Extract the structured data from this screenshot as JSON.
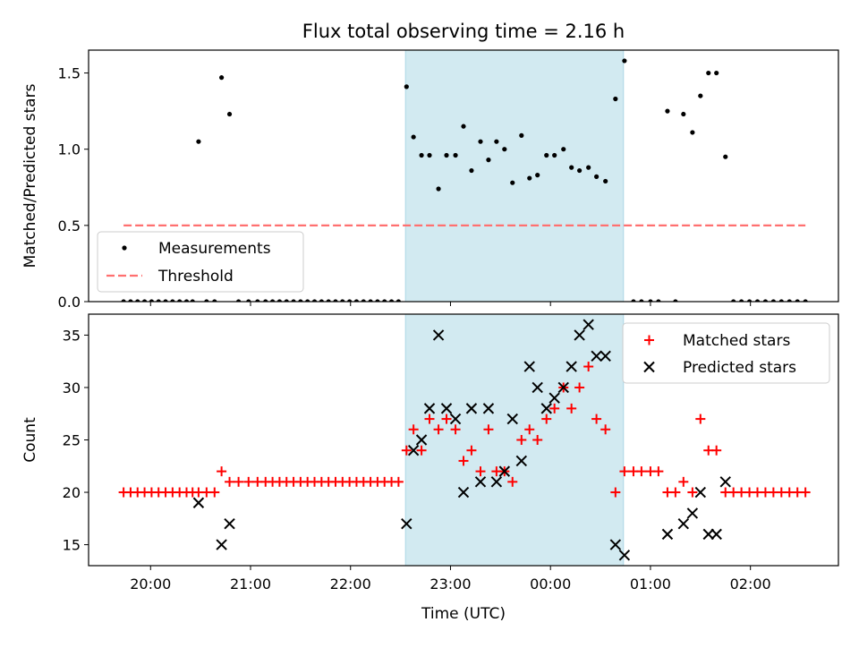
{
  "title": "Flux total observing time = 2.16 h",
  "colors": {
    "measurement": "#000000",
    "threshold": "#ff7070",
    "matched": "#ff0000",
    "predicted": "#000000",
    "span": "#add8e6"
  },
  "chart_data": [
    {
      "type": "scatter",
      "panel": "top",
      "ylabel": "Matched/Predicted stars",
      "xlabel": "",
      "x_unit": "hours since 20:00 UTC",
      "xlim": [
        -0.62,
        6.88
      ],
      "ylim": [
        0,
        1.65
      ],
      "yticks": [
        0.0,
        0.5,
        1.0,
        1.5
      ],
      "ytick_labels": [
        "0.0",
        "0.5",
        "1.0",
        "1.5"
      ],
      "grid": false,
      "legend": {
        "position": "lower left",
        "entries": [
          "Measurements",
          "Threshold"
        ]
      },
      "shaded_span": {
        "x0": 2.55,
        "x1": 4.73
      },
      "series": [
        {
          "name": "Measurements",
          "marker": "dot",
          "points": [
            [
              -0.27,
              0
            ],
            [
              -0.2,
              0
            ],
            [
              -0.13,
              0
            ],
            [
              -0.06,
              0
            ],
            [
              0.01,
              0
            ],
            [
              0.08,
              0
            ],
            [
              0.15,
              0
            ],
            [
              0.22,
              0
            ],
            [
              0.29,
              0
            ],
            [
              0.36,
              0
            ],
            [
              0.42,
              0
            ],
            [
              0.48,
              1.05
            ],
            [
              0.56,
              0
            ],
            [
              0.64,
              0
            ],
            [
              0.71,
              1.47
            ],
            [
              0.79,
              1.23
            ],
            [
              0.88,
              0
            ],
            [
              0.98,
              0
            ],
            [
              1.07,
              0
            ],
            [
              1.15,
              0
            ],
            [
              1.22,
              0
            ],
            [
              1.29,
              0
            ],
            [
              1.36,
              0
            ],
            [
              1.43,
              0
            ],
            [
              1.5,
              0
            ],
            [
              1.57,
              0
            ],
            [
              1.64,
              0
            ],
            [
              1.71,
              0
            ],
            [
              1.78,
              0
            ],
            [
              1.85,
              0
            ],
            [
              1.92,
              0
            ],
            [
              1.99,
              0
            ],
            [
              2.06,
              0
            ],
            [
              2.13,
              0
            ],
            [
              2.2,
              0
            ],
            [
              2.27,
              0
            ],
            [
              2.34,
              0
            ],
            [
              2.41,
              0
            ],
            [
              2.48,
              0
            ],
            [
              2.56,
              1.41
            ],
            [
              2.63,
              1.08
            ],
            [
              2.71,
              0.96
            ],
            [
              2.79,
              0.96
            ],
            [
              2.88,
              0.74
            ],
            [
              2.96,
              0.96
            ],
            [
              3.05,
              0.96
            ],
            [
              3.13,
              1.15
            ],
            [
              3.21,
              0.86
            ],
            [
              3.3,
              1.05
            ],
            [
              3.38,
              0.93
            ],
            [
              3.46,
              1.05
            ],
            [
              3.54,
              1.0
            ],
            [
              3.62,
              0.78
            ],
            [
              3.71,
              1.09
            ],
            [
              3.79,
              0.81
            ],
            [
              3.87,
              0.83
            ],
            [
              3.96,
              0.96
            ],
            [
              4.04,
              0.96
            ],
            [
              4.13,
              1.0
            ],
            [
              4.21,
              0.88
            ],
            [
              4.29,
              0.86
            ],
            [
              4.38,
              0.88
            ],
            [
              4.46,
              0.82
            ],
            [
              4.55,
              0.79
            ],
            [
              4.65,
              1.33
            ],
            [
              4.74,
              1.58
            ],
            [
              4.83,
              0
            ],
            [
              4.91,
              0
            ],
            [
              5.0,
              0
            ],
            [
              5.08,
              0
            ],
            [
              5.17,
              1.25
            ],
            [
              5.25,
              0
            ],
            [
              5.33,
              1.23
            ],
            [
              5.42,
              1.11
            ],
            [
              5.5,
              1.35
            ],
            [
              5.58,
              1.5
            ],
            [
              5.66,
              1.5
            ],
            [
              5.75,
              0.95
            ],
            [
              5.83,
              0
            ],
            [
              5.91,
              0
            ],
            [
              5.99,
              0
            ],
            [
              6.07,
              0
            ],
            [
              6.15,
              0
            ],
            [
              6.23,
              0
            ],
            [
              6.31,
              0
            ],
            [
              6.39,
              0
            ],
            [
              6.47,
              0
            ],
            [
              6.55,
              0
            ]
          ]
        },
        {
          "name": "Threshold",
          "style": "dashed",
          "points": [
            [
              -0.27,
              0.5
            ],
            [
              6.55,
              0.5
            ]
          ]
        }
      ]
    },
    {
      "type": "scatter",
      "panel": "bottom",
      "ylabel": "Count",
      "xlabel": "Time (UTC)",
      "x_unit": "hours since 20:00 UTC",
      "xlim": [
        -0.62,
        6.88
      ],
      "ylim": [
        13,
        37
      ],
      "xticks": [
        0,
        1,
        2,
        3,
        4,
        5,
        6
      ],
      "xtick_labels": [
        "20:00",
        "21:00",
        "22:00",
        "23:00",
        "00:00",
        "01:00",
        "02:00"
      ],
      "yticks": [
        15,
        20,
        25,
        30,
        35
      ],
      "ytick_labels": [
        "15",
        "20",
        "25",
        "30",
        "35"
      ],
      "grid": false,
      "legend": {
        "position": "upper right",
        "entries": [
          "Matched stars",
          "Predicted stars"
        ]
      },
      "shaded_span": {
        "x0": 2.55,
        "x1": 4.73
      },
      "series": [
        {
          "name": "Matched stars",
          "marker": "plus",
          "points": [
            [
              -0.27,
              20
            ],
            [
              -0.2,
              20
            ],
            [
              -0.13,
              20
            ],
            [
              -0.06,
              20
            ],
            [
              0.01,
              20
            ],
            [
              0.08,
              20
            ],
            [
              0.15,
              20
            ],
            [
              0.22,
              20
            ],
            [
              0.29,
              20
            ],
            [
              0.36,
              20
            ],
            [
              0.42,
              20
            ],
            [
              0.48,
              20
            ],
            [
              0.56,
              20
            ],
            [
              0.64,
              20
            ],
            [
              0.71,
              22
            ],
            [
              0.79,
              21
            ],
            [
              0.88,
              21
            ],
            [
              0.98,
              21
            ],
            [
              1.07,
              21
            ],
            [
              1.15,
              21
            ],
            [
              1.22,
              21
            ],
            [
              1.29,
              21
            ],
            [
              1.36,
              21
            ],
            [
              1.43,
              21
            ],
            [
              1.5,
              21
            ],
            [
              1.57,
              21
            ],
            [
              1.64,
              21
            ],
            [
              1.71,
              21
            ],
            [
              1.78,
              21
            ],
            [
              1.85,
              21
            ],
            [
              1.92,
              21
            ],
            [
              1.99,
              21
            ],
            [
              2.06,
              21
            ],
            [
              2.13,
              21
            ],
            [
              2.2,
              21
            ],
            [
              2.27,
              21
            ],
            [
              2.34,
              21
            ],
            [
              2.41,
              21
            ],
            [
              2.48,
              21
            ],
            [
              2.56,
              24
            ],
            [
              2.63,
              26
            ],
            [
              2.71,
              24
            ],
            [
              2.79,
              27
            ],
            [
              2.88,
              26
            ],
            [
              2.96,
              27
            ],
            [
              3.05,
              26
            ],
            [
              3.13,
              23
            ],
            [
              3.21,
              24
            ],
            [
              3.3,
              22
            ],
            [
              3.38,
              26
            ],
            [
              3.46,
              22
            ],
            [
              3.54,
              22
            ],
            [
              3.62,
              21
            ],
            [
              3.71,
              25
            ],
            [
              3.79,
              26
            ],
            [
              3.87,
              25
            ],
            [
              3.96,
              27
            ],
            [
              4.04,
              28
            ],
            [
              4.13,
              30
            ],
            [
              4.21,
              28
            ],
            [
              4.29,
              30
            ],
            [
              4.38,
              32
            ],
            [
              4.46,
              27
            ],
            [
              4.55,
              26
            ],
            [
              4.65,
              20
            ],
            [
              4.74,
              22
            ],
            [
              4.83,
              22
            ],
            [
              4.91,
              22
            ],
            [
              5.0,
              22
            ],
            [
              5.08,
              22
            ],
            [
              5.17,
              20
            ],
            [
              5.25,
              20
            ],
            [
              5.33,
              21
            ],
            [
              5.42,
              20
            ],
            [
              5.5,
              27
            ],
            [
              5.58,
              24
            ],
            [
              5.66,
              24
            ],
            [
              5.75,
              20
            ],
            [
              5.83,
              20
            ],
            [
              5.91,
              20
            ],
            [
              5.99,
              20
            ],
            [
              6.07,
              20
            ],
            [
              6.15,
              20
            ],
            [
              6.23,
              20
            ],
            [
              6.31,
              20
            ],
            [
              6.39,
              20
            ],
            [
              6.47,
              20
            ],
            [
              6.55,
              20
            ]
          ]
        },
        {
          "name": "Predicted stars",
          "marker": "x",
          "points": [
            [
              0.48,
              19
            ],
            [
              0.71,
              15
            ],
            [
              0.79,
              17
            ],
            [
              2.56,
              17
            ],
            [
              2.63,
              24
            ],
            [
              2.71,
              25
            ],
            [
              2.79,
              28
            ],
            [
              2.88,
              35
            ],
            [
              2.96,
              28
            ],
            [
              3.05,
              27
            ],
            [
              3.13,
              20
            ],
            [
              3.21,
              28
            ],
            [
              3.3,
              21
            ],
            [
              3.38,
              28
            ],
            [
              3.46,
              21
            ],
            [
              3.54,
              22
            ],
            [
              3.62,
              27
            ],
            [
              3.71,
              23
            ],
            [
              3.79,
              32
            ],
            [
              3.87,
              30
            ],
            [
              3.96,
              28
            ],
            [
              4.04,
              29
            ],
            [
              4.13,
              30
            ],
            [
              4.21,
              32
            ],
            [
              4.29,
              35
            ],
            [
              4.38,
              36
            ],
            [
              4.46,
              33
            ],
            [
              4.55,
              33
            ],
            [
              4.65,
              15
            ],
            [
              4.74,
              14
            ],
            [
              5.17,
              16
            ],
            [
              5.33,
              17
            ],
            [
              5.42,
              18
            ],
            [
              5.5,
              20
            ],
            [
              5.58,
              16
            ],
            [
              5.66,
              16
            ],
            [
              5.75,
              21
            ]
          ]
        }
      ]
    }
  ]
}
